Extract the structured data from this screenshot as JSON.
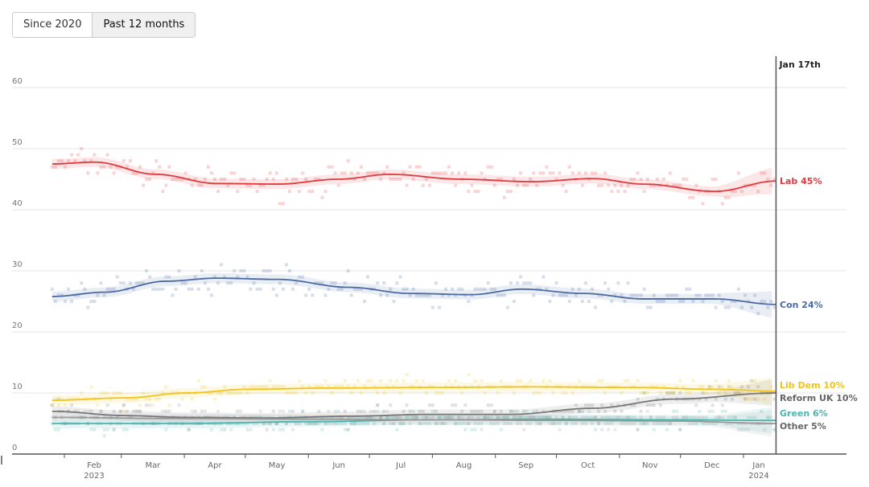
{
  "toggle": {
    "options": [
      "Since 2020",
      "Past 12 months"
    ],
    "selected": "Past 12 months"
  },
  "chart_data": {
    "type": "scatter",
    "title": "",
    "x_unit": "days since 1 Feb 2023",
    "cursor_label": "Jan 17th",
    "cursor_day": 350,
    "ylim": [
      0,
      60
    ],
    "yticks": [
      0,
      10,
      20,
      30,
      40,
      50,
      60
    ],
    "xticks": [
      {
        "day": 0,
        "label": "Feb",
        "sub": "2023"
      },
      {
        "day": 28,
        "label": "Mar"
      },
      {
        "day": 59,
        "label": "Apr"
      },
      {
        "day": 89,
        "label": "May"
      },
      {
        "day": 120,
        "label": "Jun"
      },
      {
        "day": 150,
        "label": "Jul"
      },
      {
        "day": 181,
        "label": "Aug"
      },
      {
        "day": 212,
        "label": "Sep"
      },
      {
        "day": 242,
        "label": "Oct"
      },
      {
        "day": 273,
        "label": "Nov"
      },
      {
        "day": 303,
        "label": "Dec"
      },
      {
        "day": 334,
        "label": "Jan",
        "sub": "2024"
      }
    ],
    "series": [
      {
        "name": "Lab",
        "label": "Lab 45%",
        "color": "#e0393e",
        "x": [
          -6,
          15,
          45,
          75,
          105,
          135,
          160,
          195,
          230,
          260,
          285,
          320,
          350
        ],
        "y": [
          47.5,
          47.8,
          45.8,
          44.3,
          44.2,
          45,
          45.8,
          45,
          44.6,
          45.1,
          44.2,
          43,
          44.7
        ]
      },
      {
        "name": "Con",
        "label": "Con 24%",
        "color": "#4a6aa3",
        "x": [
          -6,
          20,
          50,
          75,
          105,
          140,
          170,
          200,
          225,
          255,
          285,
          320,
          350
        ],
        "y": [
          25.8,
          26.5,
          28.3,
          28.8,
          28.6,
          27.3,
          26.3,
          26.1,
          27,
          26.3,
          25.4,
          25.4,
          24.5
        ]
      },
      {
        "name": "Lib Dem",
        "label": "Lib Dem 10%",
        "color": "#f0c419",
        "x": [
          -6,
          30,
          60,
          90,
          130,
          180,
          230,
          280,
          320,
          350
        ],
        "y": [
          8.8,
          9.2,
          10,
          10.6,
          10.8,
          10.9,
          11,
          10.9,
          10.6,
          10.3
        ]
      },
      {
        "name": "Reform UK",
        "label": "Reform UK 10%",
        "color": "#777777",
        "x": [
          -6,
          30,
          60,
          100,
          140,
          180,
          220,
          260,
          300,
          350
        ],
        "y": [
          7,
          6.3,
          6,
          5.9,
          6.2,
          6.5,
          6.5,
          7.5,
          9,
          10
        ]
      },
      {
        "name": "Green",
        "label": "Green 6%",
        "color": "#48b5b0",
        "x": [
          -6,
          60,
          120,
          180,
          240,
          300,
          350
        ],
        "y": [
          5,
          5,
          5.3,
          5.6,
          5.7,
          5.6,
          5.5
        ]
      },
      {
        "name": "Other",
        "label": "Other 5%",
        "color": "#999999",
        "x": [
          -6,
          60,
          120,
          180,
          240,
          300,
          350
        ],
        "y": [
          6,
          5.8,
          5.7,
          5.6,
          5.5,
          5.4,
          5
        ]
      }
    ]
  }
}
